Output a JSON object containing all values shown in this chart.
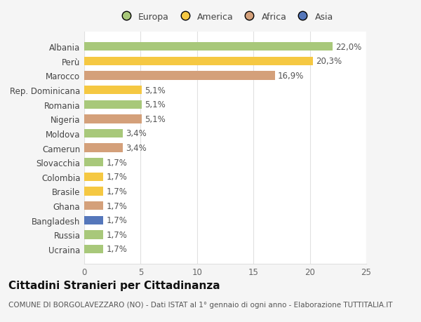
{
  "categories": [
    "Ucraina",
    "Russia",
    "Bangladesh",
    "Ghana",
    "Brasile",
    "Colombia",
    "Slovacchia",
    "Camerun",
    "Moldova",
    "Nigeria",
    "Romania",
    "Rep. Dominicana",
    "Marocco",
    "Perù",
    "Albania"
  ],
  "values": [
    1.7,
    1.7,
    1.7,
    1.7,
    1.7,
    1.7,
    1.7,
    3.4,
    3.4,
    5.1,
    5.1,
    5.1,
    16.9,
    20.3,
    22.0
  ],
  "labels": [
    "1,7%",
    "1,7%",
    "1,7%",
    "1,7%",
    "1,7%",
    "1,7%",
    "1,7%",
    "3,4%",
    "3,4%",
    "5,1%",
    "5,1%",
    "5,1%",
    "16,9%",
    "20,3%",
    "22,0%"
  ],
  "colors": [
    "#a8c87a",
    "#a8c87a",
    "#5577bb",
    "#d4a07a",
    "#f5c842",
    "#f5c842",
    "#a8c87a",
    "#d4a07a",
    "#a8c87a",
    "#d4a07a",
    "#a8c87a",
    "#f5c842",
    "#d4a07a",
    "#f5c842",
    "#a8c87a"
  ],
  "continent": [
    "Europa",
    "Europa",
    "Asia",
    "Africa",
    "America",
    "America",
    "Europa",
    "Africa",
    "Europa",
    "Africa",
    "Europa",
    "America",
    "Africa",
    "America",
    "Europa"
  ],
  "legend_labels": [
    "Europa",
    "America",
    "Africa",
    "Asia"
  ],
  "legend_colors": [
    "#a8c87a",
    "#f5c842",
    "#d4a07a",
    "#5577bb"
  ],
  "title": "Cittadini Stranieri per Cittadinanza",
  "subtitle": "COMUNE DI BORGOLAVEZZARO (NO) - Dati ISTAT al 1° gennaio di ogni anno - Elaborazione TUTTITALIA.IT",
  "xlim": [
    0,
    25
  ],
  "xticks": [
    0,
    5,
    10,
    15,
    20,
    25
  ],
  "background_color": "#f5f5f5",
  "plot_bg": "#ffffff",
  "grid_color": "#e0e0e0",
  "title_fontsize": 11,
  "subtitle_fontsize": 7.5,
  "label_fontsize": 8.5,
  "tick_fontsize": 8.5,
  "legend_fontsize": 9
}
